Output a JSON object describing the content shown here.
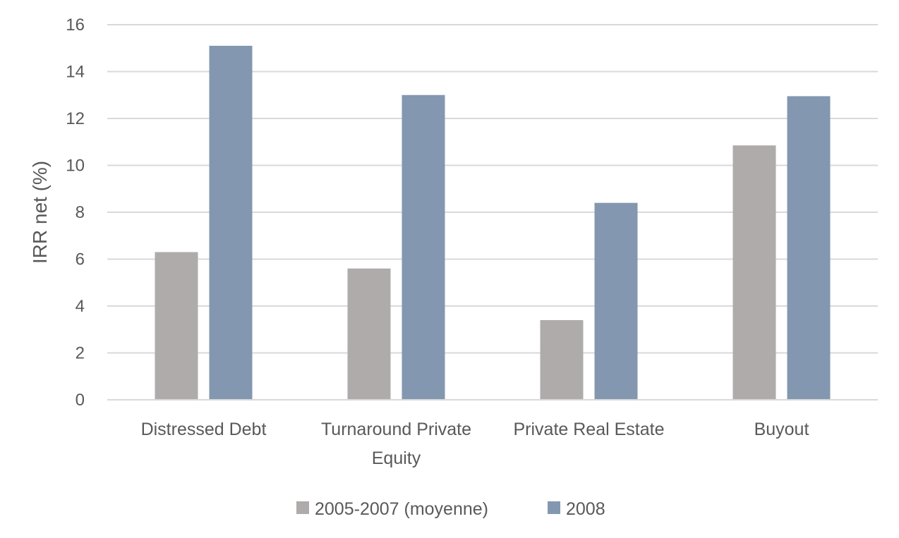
{
  "chart_data": {
    "type": "bar",
    "title": "",
    "xlabel": "",
    "ylabel": "IRR net (%)",
    "ylim": [
      0,
      16
    ],
    "yticks": [
      "0",
      "2",
      "4",
      "6",
      "8",
      "10",
      "12",
      "14",
      "16"
    ],
    "grid": true,
    "legend_position": "bottom",
    "categories": [
      [
        "Distressed Debt"
      ],
      [
        "Turnaround Private",
        "Equity"
      ],
      [
        "Private Real Estate"
      ],
      [
        "Buyout"
      ]
    ],
    "series": [
      {
        "name": "2005-2007 (moyenne)",
        "color": "#afabab",
        "values": [
          6.3,
          5.6,
          3.4,
          10.85
        ]
      },
      {
        "name": "2008",
        "color": "#8497b0",
        "values": [
          15.1,
          13.0,
          8.4,
          12.95
        ]
      }
    ]
  }
}
